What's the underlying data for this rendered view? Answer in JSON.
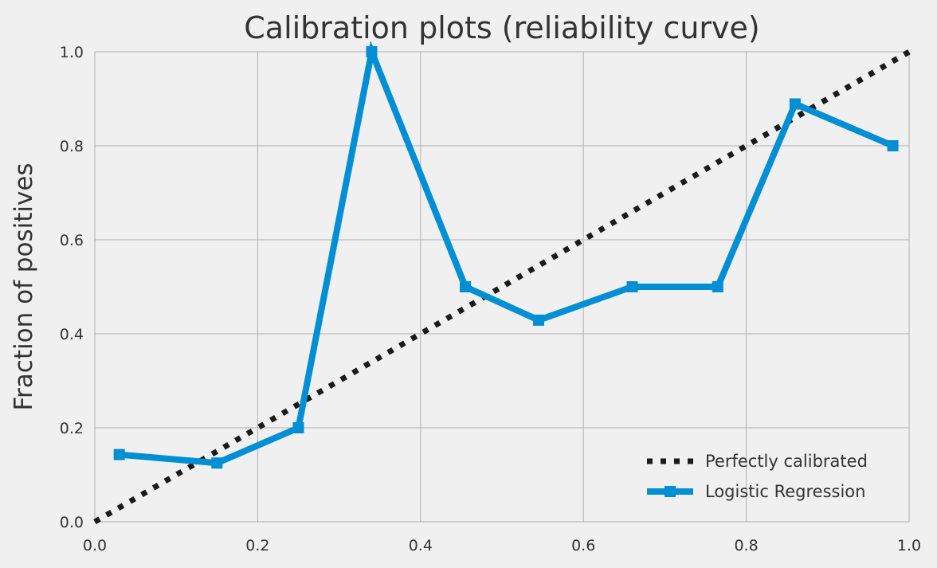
{
  "chart_data": {
    "type": "line",
    "title": "Calibration plots (reliability curve)",
    "xlabel": "",
    "ylabel": "Fraction of positives",
    "xlim": [
      0.0,
      1.0
    ],
    "ylim": [
      0.0,
      1.0
    ],
    "grid": true,
    "legend_position": "bottom-right",
    "x_ticks": [
      0.0,
      0.2,
      0.4,
      0.6,
      0.8,
      1.0
    ],
    "y_ticks": [
      0.0,
      0.2,
      0.4,
      0.6,
      0.8,
      1.0
    ],
    "x_tick_labels": [
      "0.0",
      "0.2",
      "0.4",
      "0.6",
      "0.8",
      "1.0"
    ],
    "y_tick_labels": [
      "0.0",
      "0.2",
      "0.4",
      "0.6",
      "0.8",
      "1.0"
    ],
    "series": [
      {
        "name": "Perfectly calibrated",
        "style": "dotted",
        "color": "#1a1a1a",
        "x": [
          0.0,
          1.0
        ],
        "y": [
          0.0,
          1.0
        ]
      },
      {
        "name": "Logistic Regression",
        "style": "solid-square-markers",
        "color": "#008fd5",
        "x": [
          0.03,
          0.15,
          0.25,
          0.34,
          0.455,
          0.545,
          0.66,
          0.765,
          0.86,
          0.98
        ],
        "y": [
          0.143,
          0.125,
          0.2,
          1.0,
          0.5,
          0.429,
          0.5,
          0.5,
          0.889,
          0.8
        ]
      }
    ]
  }
}
